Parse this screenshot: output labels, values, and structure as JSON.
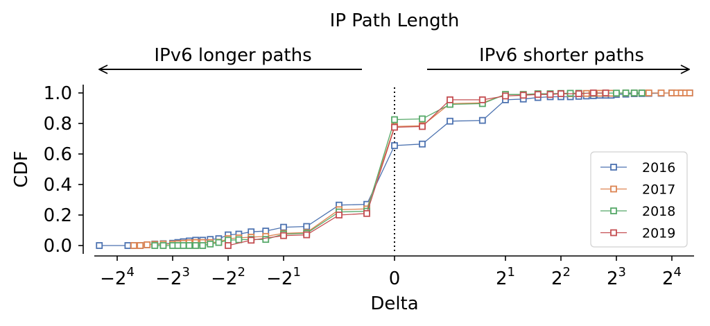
{
  "chart_data": {
    "type": "line",
    "title": "IP Path Length",
    "xlabel": "Delta",
    "ylabel": "CDF",
    "annotations": [
      {
        "text": "IPv6 longer paths",
        "direction": "left"
      },
      {
        "text": "IPv6 shorter paths",
        "direction": "right"
      }
    ],
    "x_scale": "symlog (base 2, linear between -1 and 1)",
    "xlim": [
      -20,
      20
    ],
    "ylim": [
      -0.05,
      1.05
    ],
    "x_ticks": [
      {
        "value": -16,
        "base": "−2",
        "exp": "4"
      },
      {
        "value": -8,
        "base": "−2",
        "exp": "3"
      },
      {
        "value": -4,
        "base": "−2",
        "exp": "2"
      },
      {
        "value": -2,
        "base": "−2",
        "exp": "1"
      },
      {
        "value": 0,
        "base": "0",
        "exp": ""
      },
      {
        "value": 2,
        "base": "2",
        "exp": "1"
      },
      {
        "value": 4,
        "base": "2",
        "exp": "2"
      },
      {
        "value": 8,
        "base": "2",
        "exp": "3"
      },
      {
        "value": 16,
        "base": "2",
        "exp": "4"
      }
    ],
    "y_ticks": [
      "0.0",
      "0.2",
      "0.4",
      "0.6",
      "0.8",
      "1.0"
    ],
    "y_tick_values": [
      0,
      0.2,
      0.4,
      0.6,
      0.8,
      1.0
    ],
    "vertical_reference_line": 0,
    "legend_position": "lower right",
    "series": [
      {
        "name": "2016",
        "color": "#4c72b0",
        "points": [
          [
            -20,
            0.0
          ],
          [
            -14,
            0.0
          ],
          [
            -13,
            0.0
          ],
          [
            -12,
            0.0
          ],
          [
            -11,
            0.005
          ],
          [
            -10,
            0.01
          ],
          [
            -9,
            0.012
          ],
          [
            -8,
            0.015
          ],
          [
            -7.5,
            0.02
          ],
          [
            -7,
            0.025
          ],
          [
            -6.5,
            0.03
          ],
          [
            -6,
            0.035
          ],
          [
            -5.5,
            0.035
          ],
          [
            -5,
            0.04
          ],
          [
            -4.5,
            0.045
          ],
          [
            -4,
            0.07
          ],
          [
            -3.5,
            0.075
          ],
          [
            -3,
            0.09
          ],
          [
            -2.5,
            0.095
          ],
          [
            -2,
            0.12
          ],
          [
            -1.5,
            0.125
          ],
          [
            -1,
            0.265
          ],
          [
            -0.5,
            0.27
          ],
          [
            0,
            0.655
          ],
          [
            0.5,
            0.665
          ],
          [
            1,
            0.815
          ],
          [
            1.5,
            0.82
          ],
          [
            2,
            0.955
          ],
          [
            2.5,
            0.96
          ],
          [
            3,
            0.97
          ],
          [
            3.5,
            0.975
          ],
          [
            4,
            0.975
          ],
          [
            4.5,
            0.975
          ],
          [
            5,
            0.978
          ],
          [
            5.5,
            0.98
          ],
          [
            6,
            0.982
          ],
          [
            6.5,
            0.985
          ],
          [
            7,
            0.985
          ],
          [
            7.5,
            0.985
          ],
          [
            8,
            0.99
          ],
          [
            9,
            0.992
          ],
          [
            10,
            0.995
          ],
          [
            11,
            0.996
          ],
          [
            12,
            0.997
          ],
          [
            14,
            0.998
          ],
          [
            16,
            1.0
          ],
          [
            18,
            1.0
          ],
          [
            20,
            1.0
          ]
        ]
      },
      {
        "name": "2017",
        "color": "#dd8452",
        "points": [
          [
            -13,
            0.0
          ],
          [
            -12,
            0.0
          ],
          [
            -11,
            0.005
          ],
          [
            -10,
            0.008
          ],
          [
            -9,
            0.01
          ],
          [
            -8,
            0.01
          ],
          [
            -7.5,
            0.012
          ],
          [
            -7,
            0.015
          ],
          [
            -6.5,
            0.018
          ],
          [
            -6,
            0.02
          ],
          [
            -5.5,
            0.02
          ],
          [
            -5,
            0.02
          ],
          [
            -4.5,
            0.022
          ],
          [
            -4,
            0.045
          ],
          [
            -3.5,
            0.05
          ],
          [
            -3,
            0.055
          ],
          [
            -2.5,
            0.06
          ],
          [
            -2,
            0.08
          ],
          [
            -1.5,
            0.085
          ],
          [
            -1,
            0.235
          ],
          [
            -0.5,
            0.24
          ],
          [
            0,
            0.78
          ],
          [
            0.5,
            0.785
          ],
          [
            1,
            0.93
          ],
          [
            1.5,
            0.935
          ],
          [
            2,
            0.99
          ],
          [
            2.5,
            0.99
          ],
          [
            3,
            0.992
          ],
          [
            3.5,
            0.993
          ],
          [
            4,
            0.995
          ],
          [
            4.5,
            0.995
          ],
          [
            5,
            0.996
          ],
          [
            5.5,
            0.997
          ],
          [
            6,
            0.997
          ],
          [
            6.5,
            0.998
          ],
          [
            7,
            0.998
          ],
          [
            7.5,
            0.998
          ],
          [
            8,
            0.998
          ],
          [
            9,
            0.999
          ],
          [
            10,
            0.999
          ],
          [
            11,
            1.0
          ],
          [
            12,
            1.0
          ],
          [
            14,
            1.0
          ],
          [
            16,
            1.0
          ],
          [
            17,
            1.0
          ],
          [
            18,
            1.0
          ],
          [
            19,
            1.0
          ],
          [
            20,
            1.0
          ]
        ]
      },
      {
        "name": "2018",
        "color": "#55a868",
        "points": [
          [
            -10,
            0.0
          ],
          [
            -9,
            0.0
          ],
          [
            -8,
            0.0
          ],
          [
            -7.5,
            0.0
          ],
          [
            -7,
            0.0
          ],
          [
            -6.5,
            0.0
          ],
          [
            -6,
            0.0
          ],
          [
            -5.5,
            0.0
          ],
          [
            -5,
            0.01
          ],
          [
            -4.5,
            0.02
          ],
          [
            -4,
            0.035
          ],
          [
            -3.5,
            0.038
          ],
          [
            -3,
            0.04
          ],
          [
            -2.5,
            0.04
          ],
          [
            -2,
            0.075
          ],
          [
            -1.5,
            0.08
          ],
          [
            -1,
            0.22
          ],
          [
            -0.5,
            0.225
          ],
          [
            0,
            0.825
          ],
          [
            0.5,
            0.83
          ],
          [
            1,
            0.925
          ],
          [
            1.5,
            0.93
          ],
          [
            2,
            0.99
          ],
          [
            2.5,
            0.99
          ],
          [
            3,
            0.995
          ],
          [
            3.5,
            0.995
          ],
          [
            4,
            0.997
          ],
          [
            4.5,
            0.998
          ],
          [
            5,
            0.998
          ],
          [
            6,
            0.998
          ],
          [
            7,
            0.999
          ],
          [
            8,
            0.999
          ],
          [
            9,
            1.0
          ],
          [
            10,
            1.0
          ],
          [
            11,
            1.0
          ]
        ]
      },
      {
        "name": "2019",
        "color": "#c44e52",
        "points": [
          [
            -4,
            0.0
          ],
          [
            -3,
            0.035
          ],
          [
            -2,
            0.065
          ],
          [
            -1.5,
            0.07
          ],
          [
            -1,
            0.2
          ],
          [
            -0.5,
            0.21
          ],
          [
            0,
            0.775
          ],
          [
            0.5,
            0.78
          ],
          [
            1,
            0.955
          ],
          [
            1.5,
            0.955
          ],
          [
            2,
            0.98
          ],
          [
            2.5,
            0.985
          ],
          [
            3,
            0.99
          ],
          [
            3.5,
            0.99
          ],
          [
            4,
            0.995
          ],
          [
            5,
            0.995
          ],
          [
            6,
            1.0
          ],
          [
            7,
            1.0
          ]
        ]
      }
    ]
  }
}
